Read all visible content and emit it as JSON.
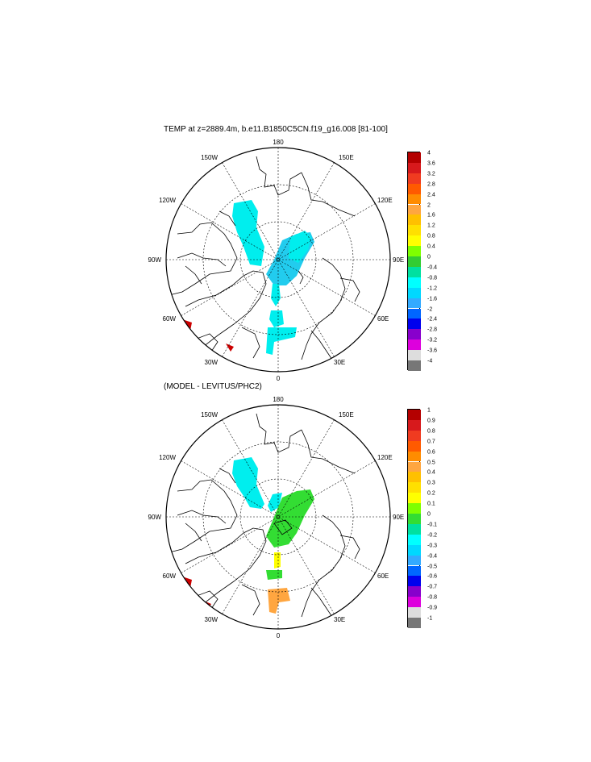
{
  "panels": [
    {
      "title": "TEMP at z=2889.4m, b.e11.B1850C5CN.f19_g16.008 [81-100]",
      "lon_labels": {
        "top": "180",
        "bottom": "0",
        "left": "90W",
        "right": "90E",
        "upper_left": "150W",
        "upper_right": "150E",
        "mid_left": "120W",
        "mid_right": "120E",
        "lower_left": "60W",
        "lower_right": "60E",
        "bottom_left": "30W",
        "bottom_right": "30E"
      },
      "colorbar": {
        "levels": [
          "4",
          "3.6",
          "3.2",
          "2.8",
          "2.4",
          "2",
          "1.6",
          "1.2",
          "0.8",
          "0.4",
          "0",
          "-0.4",
          "-0.8",
          "-1.2",
          "-1.6",
          "-2",
          "-2.4",
          "-2.8",
          "-3.2",
          "-3.6",
          "-4"
        ],
        "colors": [
          "#b40000",
          "#d7191c",
          "#f03b20",
          "#ff5a00",
          "#ff8c00",
          "#ffa640",
          "#ffc000",
          "#ffe000",
          "#ffff00",
          "#7fff00",
          "#33cc33",
          "#00e0a0",
          "#00ffff",
          "#00d8ff",
          "#33aaff",
          "#0066ff",
          "#0000ee",
          "#8800cc",
          "#dd00dd",
          "#dddddd",
          "#777777"
        ]
      },
      "fill_colors": {
        "main": "#00eeee",
        "central": "#22ccee",
        "hotspot": "#cc0000"
      }
    },
    {
      "title": "(MODEL - LEVITUS/PHC2)",
      "lon_labels": {
        "top": "180",
        "bottom": "0",
        "left": "90W",
        "right": "90E",
        "upper_left": "150W",
        "upper_right": "150E",
        "mid_left": "120W",
        "mid_right": "120E",
        "lower_left": "60W",
        "lower_right": "60E",
        "bottom_left": "30W",
        "bottom_right": "30E"
      },
      "colorbar": {
        "levels": [
          "1",
          "0.9",
          "0.8",
          "0.7",
          "0.6",
          "0.5",
          "0.4",
          "0.3",
          "0.2",
          "0.1",
          "0",
          "-0.1",
          "-0.2",
          "-0.3",
          "-0.4",
          "-0.5",
          "-0.6",
          "-0.7",
          "-0.8",
          "-0.9",
          "-1"
        ],
        "colors": [
          "#b40000",
          "#d7191c",
          "#f03b20",
          "#ff5a00",
          "#ff8c00",
          "#ffa640",
          "#ffc000",
          "#ffe000",
          "#ffff00",
          "#7fff00",
          "#33dd33",
          "#00e0a0",
          "#00ffff",
          "#00d8ff",
          "#33aaff",
          "#0066ff",
          "#0000ee",
          "#8800cc",
          "#dd00dd",
          "#dddddd",
          "#777777"
        ]
      },
      "fill_colors": {
        "main": "#00eeee",
        "green": "#33dd33",
        "orange": "#ffa640",
        "yellow": "#ffff00",
        "hotspot": "#cc0000"
      }
    }
  ]
}
